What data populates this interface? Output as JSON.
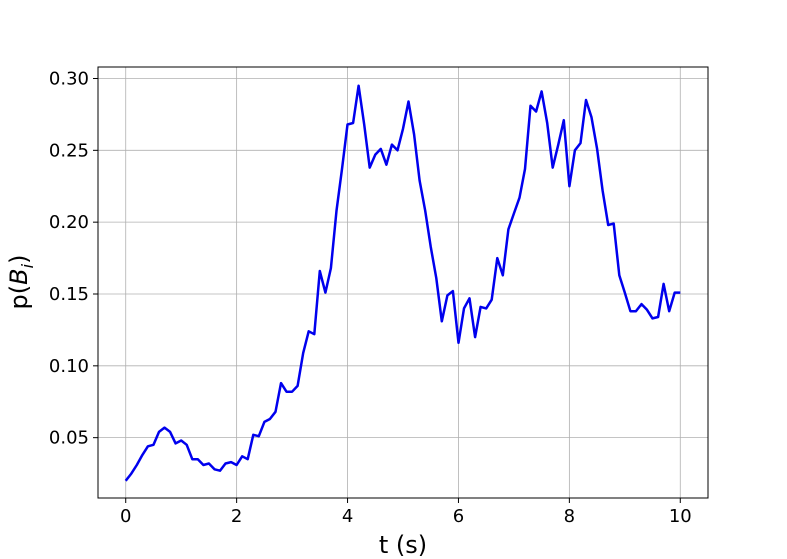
{
  "chart_data": {
    "type": "line",
    "title": "",
    "xlabel": "t (s)",
    "ylabel_prefix": "p(",
    "ylabel_var": "B",
    "ylabel_sub": "i",
    "ylabel_suffix": ")",
    "xlim": [
      -0.5,
      10.5
    ],
    "ylim": [
      0.008,
      0.308
    ],
    "xticks": [
      0,
      2,
      4,
      6,
      8,
      10
    ],
    "xtick_labels": [
      "0",
      "2",
      "4",
      "6",
      "8",
      "10"
    ],
    "yticks": [
      0.05,
      0.1,
      0.15,
      0.2,
      0.25,
      0.3
    ],
    "ytick_labels": [
      "0.05",
      "0.10",
      "0.15",
      "0.20",
      "0.25",
      "0.30"
    ],
    "grid": true,
    "series": [
      {
        "color": "#0000ee",
        "x": [
          0.0,
          0.1,
          0.2,
          0.3,
          0.4,
          0.5,
          0.6,
          0.7,
          0.8,
          0.9,
          1.0,
          1.1,
          1.2,
          1.3,
          1.4,
          1.5,
          1.6,
          1.7,
          1.8,
          1.9,
          2.0,
          2.1,
          2.2,
          2.3,
          2.4,
          2.5,
          2.6,
          2.7,
          2.8,
          2.9,
          3.0,
          3.1,
          3.2,
          3.3,
          3.4,
          3.5,
          3.6,
          3.7,
          3.8,
          3.9,
          4.0,
          4.1,
          4.2,
          4.3,
          4.4,
          4.5,
          4.6,
          4.7,
          4.8,
          4.9,
          5.0,
          5.1,
          5.2,
          5.3,
          5.4,
          5.5,
          5.6,
          5.7,
          5.8,
          5.9,
          6.0,
          6.1,
          6.2,
          6.3,
          6.4,
          6.5,
          6.6,
          6.7,
          6.8,
          6.9,
          7.0,
          7.1,
          7.2,
          7.3,
          7.4,
          7.5,
          7.6,
          7.7,
          7.8,
          7.9,
          8.0,
          8.1,
          8.2,
          8.3,
          8.4,
          8.5,
          8.6,
          8.7,
          8.8,
          8.9,
          9.0,
          9.1,
          9.2,
          9.3,
          9.4,
          9.5,
          9.6,
          9.7,
          9.8,
          9.9,
          10.0
        ],
        "y": [
          0.02,
          0.025,
          0.031,
          0.038,
          0.044,
          0.045,
          0.054,
          0.057,
          0.054,
          0.046,
          0.048,
          0.045,
          0.035,
          0.035,
          0.031,
          0.032,
          0.028,
          0.027,
          0.032,
          0.033,
          0.031,
          0.037,
          0.035,
          0.052,
          0.051,
          0.061,
          0.063,
          0.068,
          0.088,
          0.082,
          0.082,
          0.086,
          0.109,
          0.124,
          0.122,
          0.166,
          0.151,
          0.168,
          0.208,
          0.237,
          0.268,
          0.269,
          0.295,
          0.268,
          0.238,
          0.247,
          0.251,
          0.24,
          0.254,
          0.25,
          0.265,
          0.284,
          0.261,
          0.229,
          0.208,
          0.183,
          0.161,
          0.131,
          0.149,
          0.152,
          0.116,
          0.14,
          0.147,
          0.12,
          0.141,
          0.14,
          0.146,
          0.175,
          0.163,
          0.195,
          0.206,
          0.217,
          0.237,
          0.281,
          0.277,
          0.291,
          0.269,
          0.238,
          0.254,
          0.271,
          0.225,
          0.25,
          0.255,
          0.285,
          0.273,
          0.251,
          0.222,
          0.198,
          0.199,
          0.163,
          0.151,
          0.138,
          0.138,
          0.143,
          0.139,
          0.133,
          0.134,
          0.157,
          0.138,
          0.151,
          0.151
        ]
      }
    ]
  }
}
